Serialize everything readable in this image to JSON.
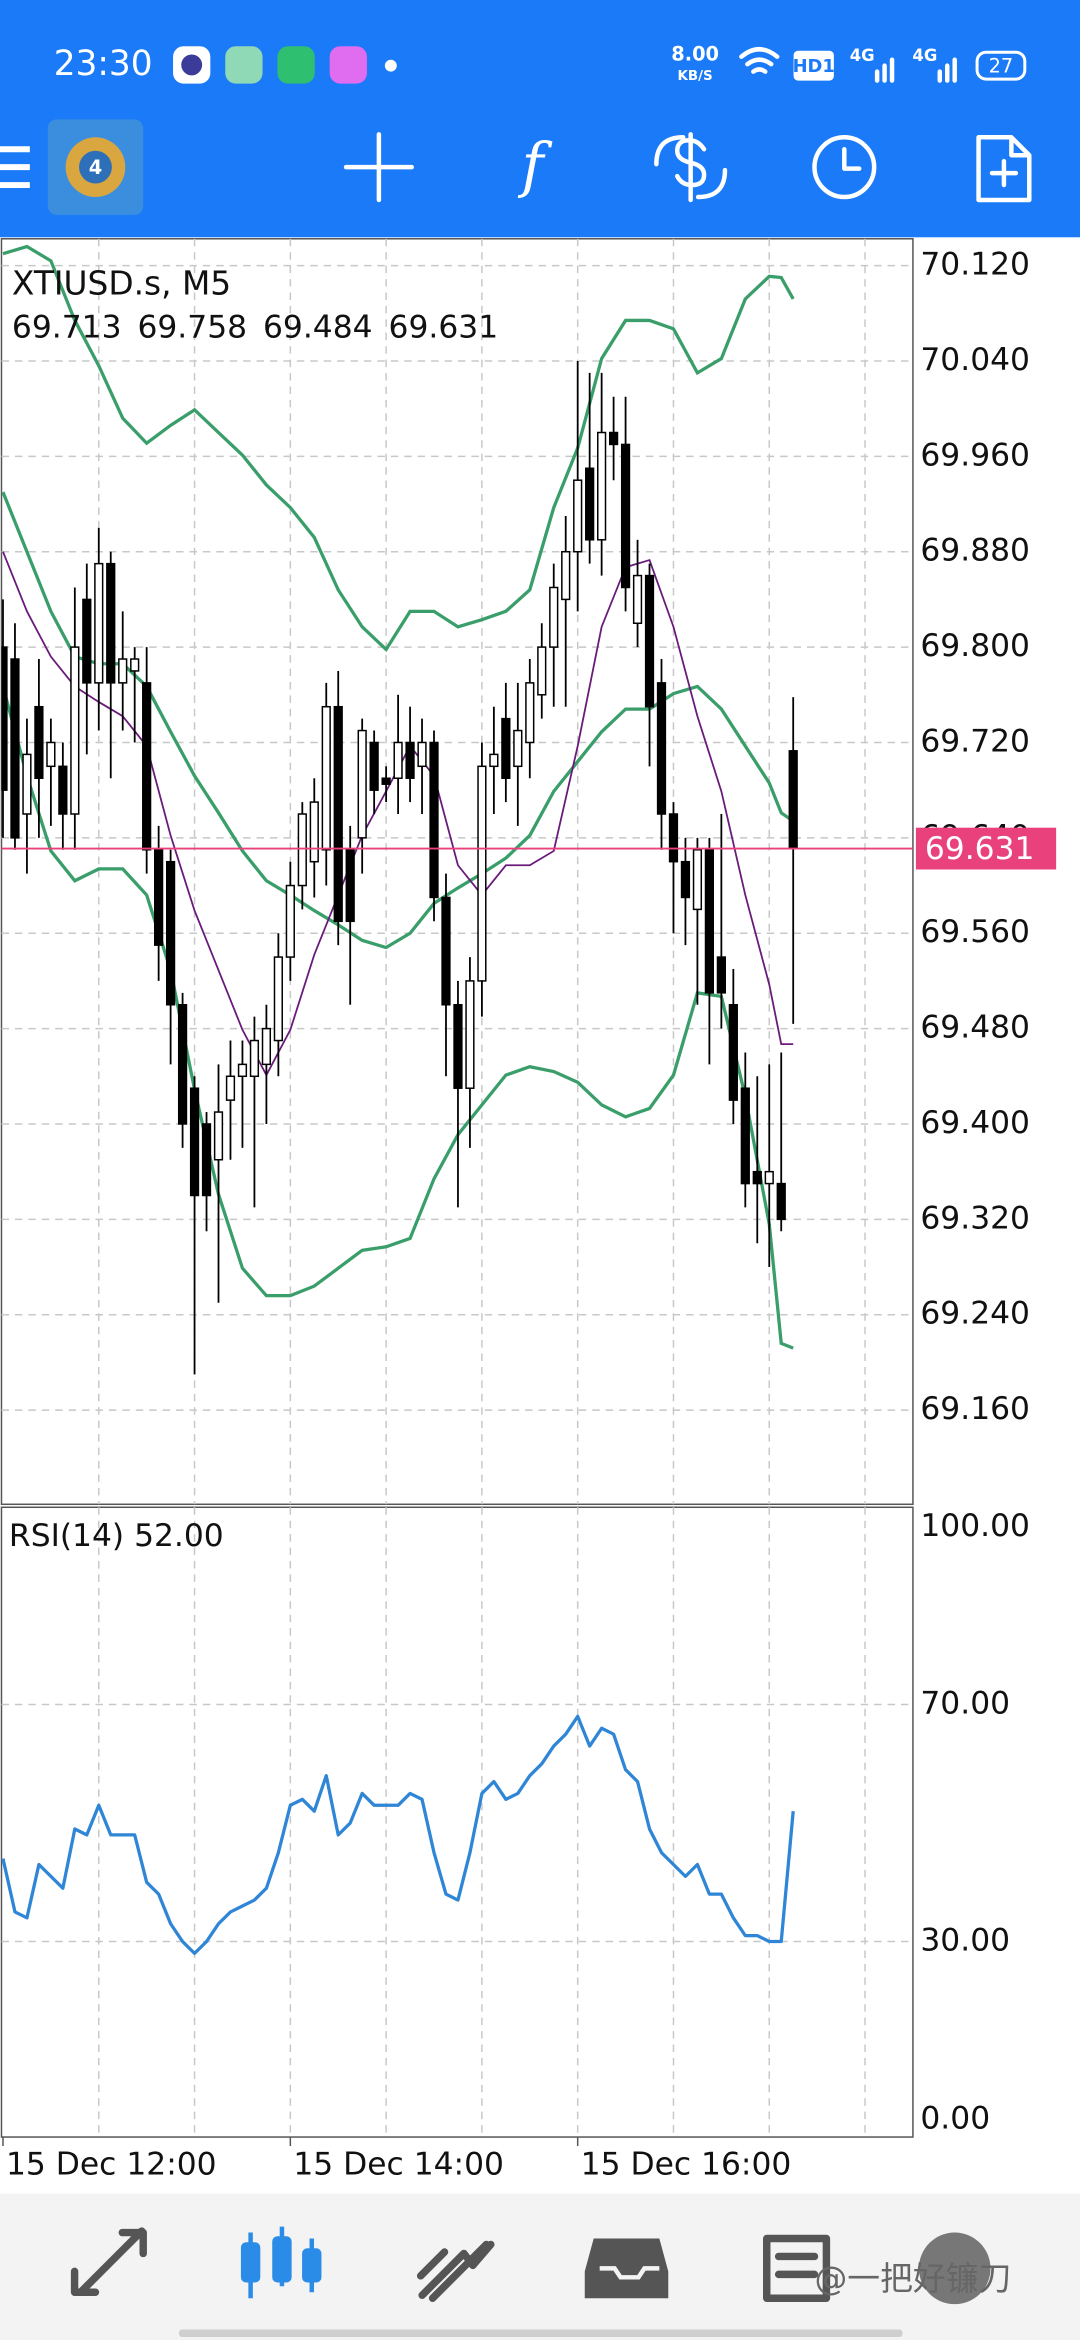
{
  "status_bar": {
    "time": "23:30",
    "net_speed": "8.00",
    "net_unit": "KB/S",
    "hd": "HD1",
    "signal_1": "4G",
    "signal_2": "4G",
    "battery": "27"
  },
  "watermark": "@一把好镰刀",
  "chart_data": [
    {
      "type": "candlestick",
      "title": "XTIUSD.s, M5",
      "grid": true,
      "color_bull": "#ffffff",
      "color_bear": "#000000",
      "price_line_color": "#e8417b",
      "xlim": [
        -0.125,
        76
      ],
      "ylim": [
        69.081,
        70.1425
      ],
      "yticks": [
        {
          "value": 70.12,
          "label": "70.120"
        },
        {
          "value": 70.04,
          "label": "70.040"
        },
        {
          "value": 69.96,
          "label": "69.960"
        },
        {
          "value": 69.88,
          "label": "69.880"
        },
        {
          "value": 69.8,
          "label": "69.800"
        },
        {
          "value": 69.72,
          "label": "69.720"
        },
        {
          "value": 69.64,
          "label": "69.640"
        },
        {
          "value": 69.56,
          "label": "69.560"
        },
        {
          "value": 69.48,
          "label": "69.480"
        },
        {
          "value": 69.4,
          "label": "69.400"
        },
        {
          "value": 69.32,
          "label": "69.320"
        },
        {
          "value": 69.24,
          "label": "69.240"
        },
        {
          "value": 69.16,
          "label": "69.160"
        }
      ],
      "candles": [
        [
          69.8,
          69.84,
          69.64,
          69.68
        ],
        [
          69.79,
          69.82,
          69.63,
          69.64
        ],
        [
          69.66,
          69.74,
          69.61,
          69.71
        ],
        [
          69.75,
          69.79,
          69.64,
          69.69
        ],
        [
          69.7,
          69.74,
          69.65,
          69.72
        ],
        [
          69.7,
          69.72,
          69.63,
          69.66
        ],
        [
          69.66,
          69.85,
          69.63,
          69.8
        ],
        [
          69.84,
          69.87,
          69.71,
          69.77
        ],
        [
          69.77,
          69.9,
          69.73,
          69.87
        ],
        [
          69.87,
          69.88,
          69.69,
          69.77
        ],
        [
          69.77,
          69.83,
          69.73,
          69.79
        ],
        [
          69.78,
          69.8,
          69.72,
          69.79
        ],
        [
          69.77,
          69.8,
          69.61,
          69.63
        ],
        [
          69.63,
          69.65,
          69.52,
          69.55
        ],
        [
          69.62,
          69.63,
          69.45,
          69.5
        ],
        [
          69.5,
          69.51,
          69.38,
          69.4
        ],
        [
          69.43,
          69.44,
          69.19,
          69.34
        ],
        [
          69.4,
          69.41,
          69.31,
          69.34
        ],
        [
          69.37,
          69.45,
          69.25,
          69.41
        ],
        [
          69.42,
          69.47,
          69.37,
          69.44
        ],
        [
          69.44,
          69.47,
          69.38,
          69.45
        ],
        [
          69.44,
          69.49,
          69.33,
          69.47
        ],
        [
          69.45,
          69.5,
          69.4,
          69.48
        ],
        [
          69.47,
          69.56,
          69.44,
          69.54
        ],
        [
          69.54,
          69.62,
          69.52,
          69.6
        ],
        [
          69.6,
          69.67,
          69.58,
          69.66
        ],
        [
          69.62,
          69.69,
          69.59,
          69.67
        ],
        [
          69.63,
          69.77,
          69.6,
          69.75
        ],
        [
          69.75,
          69.78,
          69.55,
          69.57
        ],
        [
          69.63,
          69.65,
          69.5,
          69.57
        ],
        [
          69.64,
          69.74,
          69.61,
          69.73
        ],
        [
          69.72,
          69.73,
          69.66,
          69.68
        ],
        [
          69.69,
          69.7,
          69.67,
          69.685
        ],
        [
          69.69,
          69.76,
          69.66,
          69.72
        ],
        [
          69.72,
          69.75,
          69.67,
          69.69
        ],
        [
          69.7,
          69.74,
          69.66,
          69.72
        ],
        [
          69.72,
          69.73,
          69.57,
          69.59
        ],
        [
          69.59,
          69.61,
          69.44,
          69.5
        ],
        [
          69.5,
          69.52,
          69.33,
          69.43
        ],
        [
          69.43,
          69.54,
          69.38,
          69.52
        ],
        [
          69.52,
          69.72,
          69.49,
          69.7
        ],
        [
          69.7,
          69.75,
          69.66,
          69.71
        ],
        [
          69.74,
          69.77,
          69.67,
          69.69
        ],
        [
          69.7,
          69.77,
          69.65,
          69.73
        ],
        [
          69.72,
          69.79,
          69.69,
          69.77
        ],
        [
          69.76,
          69.82,
          69.74,
          69.8
        ],
        [
          69.8,
          69.87,
          69.75,
          69.85
        ],
        [
          69.84,
          69.91,
          69.75,
          69.88
        ],
        [
          69.88,
          70.04,
          69.83,
          69.94
        ],
        [
          69.95,
          70.03,
          69.87,
          69.89
        ],
        [
          69.89,
          70.03,
          69.86,
          69.98
        ],
        [
          69.98,
          70.01,
          69.94,
          69.97
        ],
        [
          69.97,
          70.01,
          69.83,
          69.85
        ],
        [
          69.82,
          69.89,
          69.8,
          69.86
        ],
        [
          69.86,
          69.87,
          69.7,
          69.75
        ],
        [
          69.77,
          69.79,
          69.63,
          69.66
        ],
        [
          69.66,
          69.67,
          69.56,
          69.62
        ],
        [
          69.62,
          69.64,
          69.55,
          69.59
        ],
        [
          69.58,
          69.64,
          69.5,
          69.63
        ],
        [
          69.63,
          69.64,
          69.45,
          69.51
        ],
        [
          69.54,
          69.66,
          69.48,
          69.51
        ],
        [
          69.5,
          69.53,
          69.4,
          69.42
        ],
        [
          69.43,
          69.46,
          69.33,
          69.35
        ],
        [
          69.36,
          69.44,
          69.3,
          69.35
        ],
        [
          69.35,
          69.45,
          69.28,
          69.36
        ],
        [
          69.35,
          69.46,
          69.31,
          69.32
        ],
        [
          69.713,
          69.758,
          69.484,
          69.631
        ]
      ],
      "overlays": [
        {
          "color": "#3a9e6a",
          "x": [
            0,
            2,
            4,
            6,
            8,
            10,
            12,
            14,
            16,
            18,
            20,
            22,
            24,
            26,
            28,
            30,
            32,
            34,
            36,
            38,
            40,
            42,
            44,
            46,
            48,
            50,
            52,
            54,
            56,
            58,
            60,
            62,
            64,
            65,
            66
          ],
          "values": [
            70.13,
            70.136,
            70.124,
            70.074,
            70.036,
            69.992,
            69.971,
            69.986,
            69.999,
            69.98,
            69.961,
            69.936,
            69.917,
            69.892,
            69.848,
            69.817,
            69.798,
            69.83,
            69.83,
            69.817,
            69.823,
            69.83,
            69.848,
            69.917,
            69.967,
            70.042,
            70.074,
            70.074,
            70.067,
            70.03,
            70.042,
            70.092,
            70.111,
            70.11,
            70.092
          ]
        },
        {
          "color": "#3a9e6a",
          "x": [
            0,
            2,
            4,
            6,
            8,
            10,
            12,
            14,
            16,
            18,
            20,
            22,
            24,
            26,
            28,
            30,
            32,
            34,
            36,
            38,
            40,
            42,
            44,
            46,
            48,
            50,
            52,
            54,
            56,
            58,
            60,
            62,
            64,
            65,
            66
          ],
          "values": [
            69.93,
            69.88,
            69.83,
            69.792,
            69.786,
            69.786,
            69.767,
            69.729,
            69.692,
            69.661,
            69.629,
            69.604,
            69.592,
            69.579,
            69.567,
            69.554,
            69.548,
            69.56,
            69.585,
            69.598,
            69.61,
            69.623,
            69.642,
            69.679,
            69.704,
            69.729,
            69.748,
            69.748,
            69.761,
            69.767,
            69.748,
            69.717,
            69.686,
            69.661,
            69.654
          ]
        },
        {
          "color": "#3a9e6a",
          "x": [
            0,
            2,
            4,
            6,
            8,
            10,
            12,
            14,
            16,
            18,
            20,
            22,
            24,
            26,
            28,
            30,
            32,
            34,
            36,
            38,
            40,
            42,
            44,
            46,
            48,
            50,
            52,
            54,
            56,
            58,
            60,
            62,
            64,
            65,
            66
          ],
          "values": [
            69.767,
            69.692,
            69.629,
            69.604,
            69.614,
            69.614,
            69.592,
            69.529,
            69.429,
            69.341,
            69.279,
            69.256,
            69.256,
            69.264,
            69.279,
            69.294,
            69.297,
            69.304,
            69.354,
            69.391,
            69.416,
            69.441,
            69.448,
            69.444,
            69.435,
            69.416,
            69.406,
            69.413,
            69.441,
            69.51,
            69.507,
            69.423,
            69.316,
            69.216,
            69.212
          ]
        },
        {
          "color": "#6a1b7a",
          "x": [
            0,
            2,
            4,
            6,
            8,
            10,
            12,
            14,
            16,
            18,
            20,
            22,
            24,
            26,
            28,
            30,
            32,
            34,
            36,
            38,
            40,
            42,
            44,
            46,
            48,
            50,
            52,
            54,
            56,
            58,
            60,
            62,
            64,
            65,
            66
          ],
          "values": [
            69.88,
            69.83,
            69.792,
            69.767,
            69.754,
            69.742,
            69.717,
            69.642,
            69.579,
            69.529,
            69.479,
            69.441,
            69.479,
            69.542,
            69.592,
            69.642,
            69.679,
            69.717,
            69.692,
            69.617,
            69.592,
            69.617,
            69.617,
            69.629,
            69.717,
            69.817,
            69.867,
            69.873,
            69.817,
            69.742,
            69.679,
            69.592,
            69.517,
            69.467,
            69.467
          ]
        }
      ]
    },
    {
      "type": "line",
      "title": "RSI(14) 52.00",
      "color": "#2f86d6",
      "grid": true,
      "xlim": [
        -0.125,
        76
      ],
      "ylim": [
        -3,
        103.3
      ],
      "yticks": [
        {
          "value": 100,
          "label": "100.00"
        },
        {
          "value": 70,
          "label": "70.00"
        },
        {
          "value": 30,
          "label": "30.00"
        },
        {
          "value": 0,
          "label": "0.00"
        }
      ],
      "xticks": [
        {
          "value": 0,
          "label": "15 Dec 12:00"
        },
        {
          "value": 24,
          "label": "15 Dec 14:00"
        },
        {
          "value": 48,
          "label": "15 Dec 16:00"
        }
      ],
      "values": [
        44,
        35,
        34,
        43,
        41,
        39,
        49,
        48,
        53,
        48,
        48,
        48,
        40,
        38,
        33,
        30,
        28,
        30,
        33,
        35,
        36,
        37,
        39,
        45,
        53,
        54,
        52,
        58,
        48,
        50,
        55,
        53,
        53,
        53,
        55,
        54,
        45,
        38,
        37,
        45,
        55,
        57,
        54,
        55,
        58,
        60,
        63,
        65,
        68,
        63,
        66,
        65,
        59,
        57,
        49,
        45,
        43,
        41,
        43,
        38,
        38,
        34,
        31,
        31,
        30,
        30,
        52
      ]
    }
  ]
}
